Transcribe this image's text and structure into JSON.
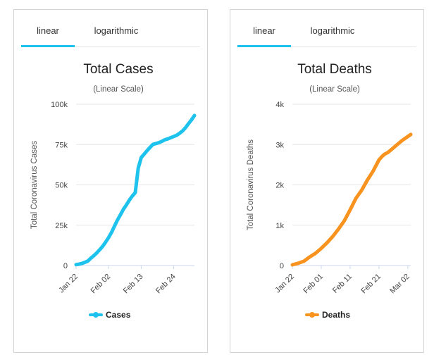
{
  "tabs": {
    "linear": "linear",
    "log": "logarithmic"
  },
  "chart_data": [
    {
      "type": "line",
      "title": "Total Cases",
      "subtitle": "(Linear Scale)",
      "ylabel": "Total Coronavirus Cases",
      "ylim": [
        0,
        100000
      ],
      "yticks": [
        0,
        25000,
        50000,
        75000,
        100000
      ],
      "ytick_labels": [
        "0",
        "25k",
        "50k",
        "75k",
        "100k"
      ],
      "xticks": [
        0,
        11,
        22,
        33
      ],
      "xtick_labels": [
        "Jan 22",
        "Feb 02",
        "Feb 13",
        "Feb 24"
      ],
      "xlim": [
        0,
        40
      ],
      "color": "#1ec3ed",
      "legend": "top-bottom",
      "series": [
        {
          "name": "Cases",
          "x": [
            0,
            1,
            2,
            3,
            4,
            5,
            6,
            7,
            8,
            9,
            10,
            11,
            12,
            13,
            14,
            15,
            16,
            17,
            18,
            19,
            20,
            21,
            22,
            23,
            24,
            25,
            26,
            27,
            28,
            29,
            30,
            31,
            32,
            33,
            34,
            35,
            36,
            37,
            38,
            39,
            40
          ],
          "values": [
            580,
            845,
            1320,
            2010,
            2800,
            4590,
            6060,
            7810,
            9820,
            11950,
            14550,
            17390,
            20630,
            24550,
            28280,
            31500,
            34900,
            37550,
            40560,
            43100,
            45200,
            60380,
            66890,
            69030,
            71230,
            73270,
            75150,
            75650,
            76200,
            77000,
            78000,
            78500,
            79300,
            80000,
            80800,
            82000,
            83500,
            85500,
            88000,
            90300,
            93000
          ]
        }
      ]
    },
    {
      "type": "line",
      "title": "Total Deaths",
      "subtitle": "(Linear Scale)",
      "ylabel": "Total Coronavirus Deaths",
      "ylim": [
        0,
        4000
      ],
      "yticks": [
        0,
        1000,
        2000,
        3000,
        4000
      ],
      "ytick_labels": [
        "0",
        "1k",
        "2k",
        "3k",
        "4k"
      ],
      "xticks": [
        0,
        10,
        20,
        30,
        40
      ],
      "xtick_labels": [
        "Jan 22",
        "Feb 01",
        "Feb 11",
        "Feb 21",
        "Mar 02"
      ],
      "xlim": [
        0,
        41
      ],
      "color": "#f7931e",
      "series": [
        {
          "name": "Deaths",
          "x": [
            0,
            2,
            4,
            6,
            8,
            10,
            12,
            14,
            16,
            18,
            20,
            22,
            24,
            26,
            28,
            30,
            31,
            32,
            33,
            34,
            36,
            38,
            40,
            41
          ],
          "values": [
            17,
            56,
            106,
            213,
            304,
            427,
            565,
            723,
            908,
            1113,
            1383,
            1665,
            1868,
            2121,
            2345,
            2618,
            2700,
            2763,
            2800,
            2858,
            2980,
            3100,
            3200,
            3250
          ]
        }
      ]
    }
  ]
}
